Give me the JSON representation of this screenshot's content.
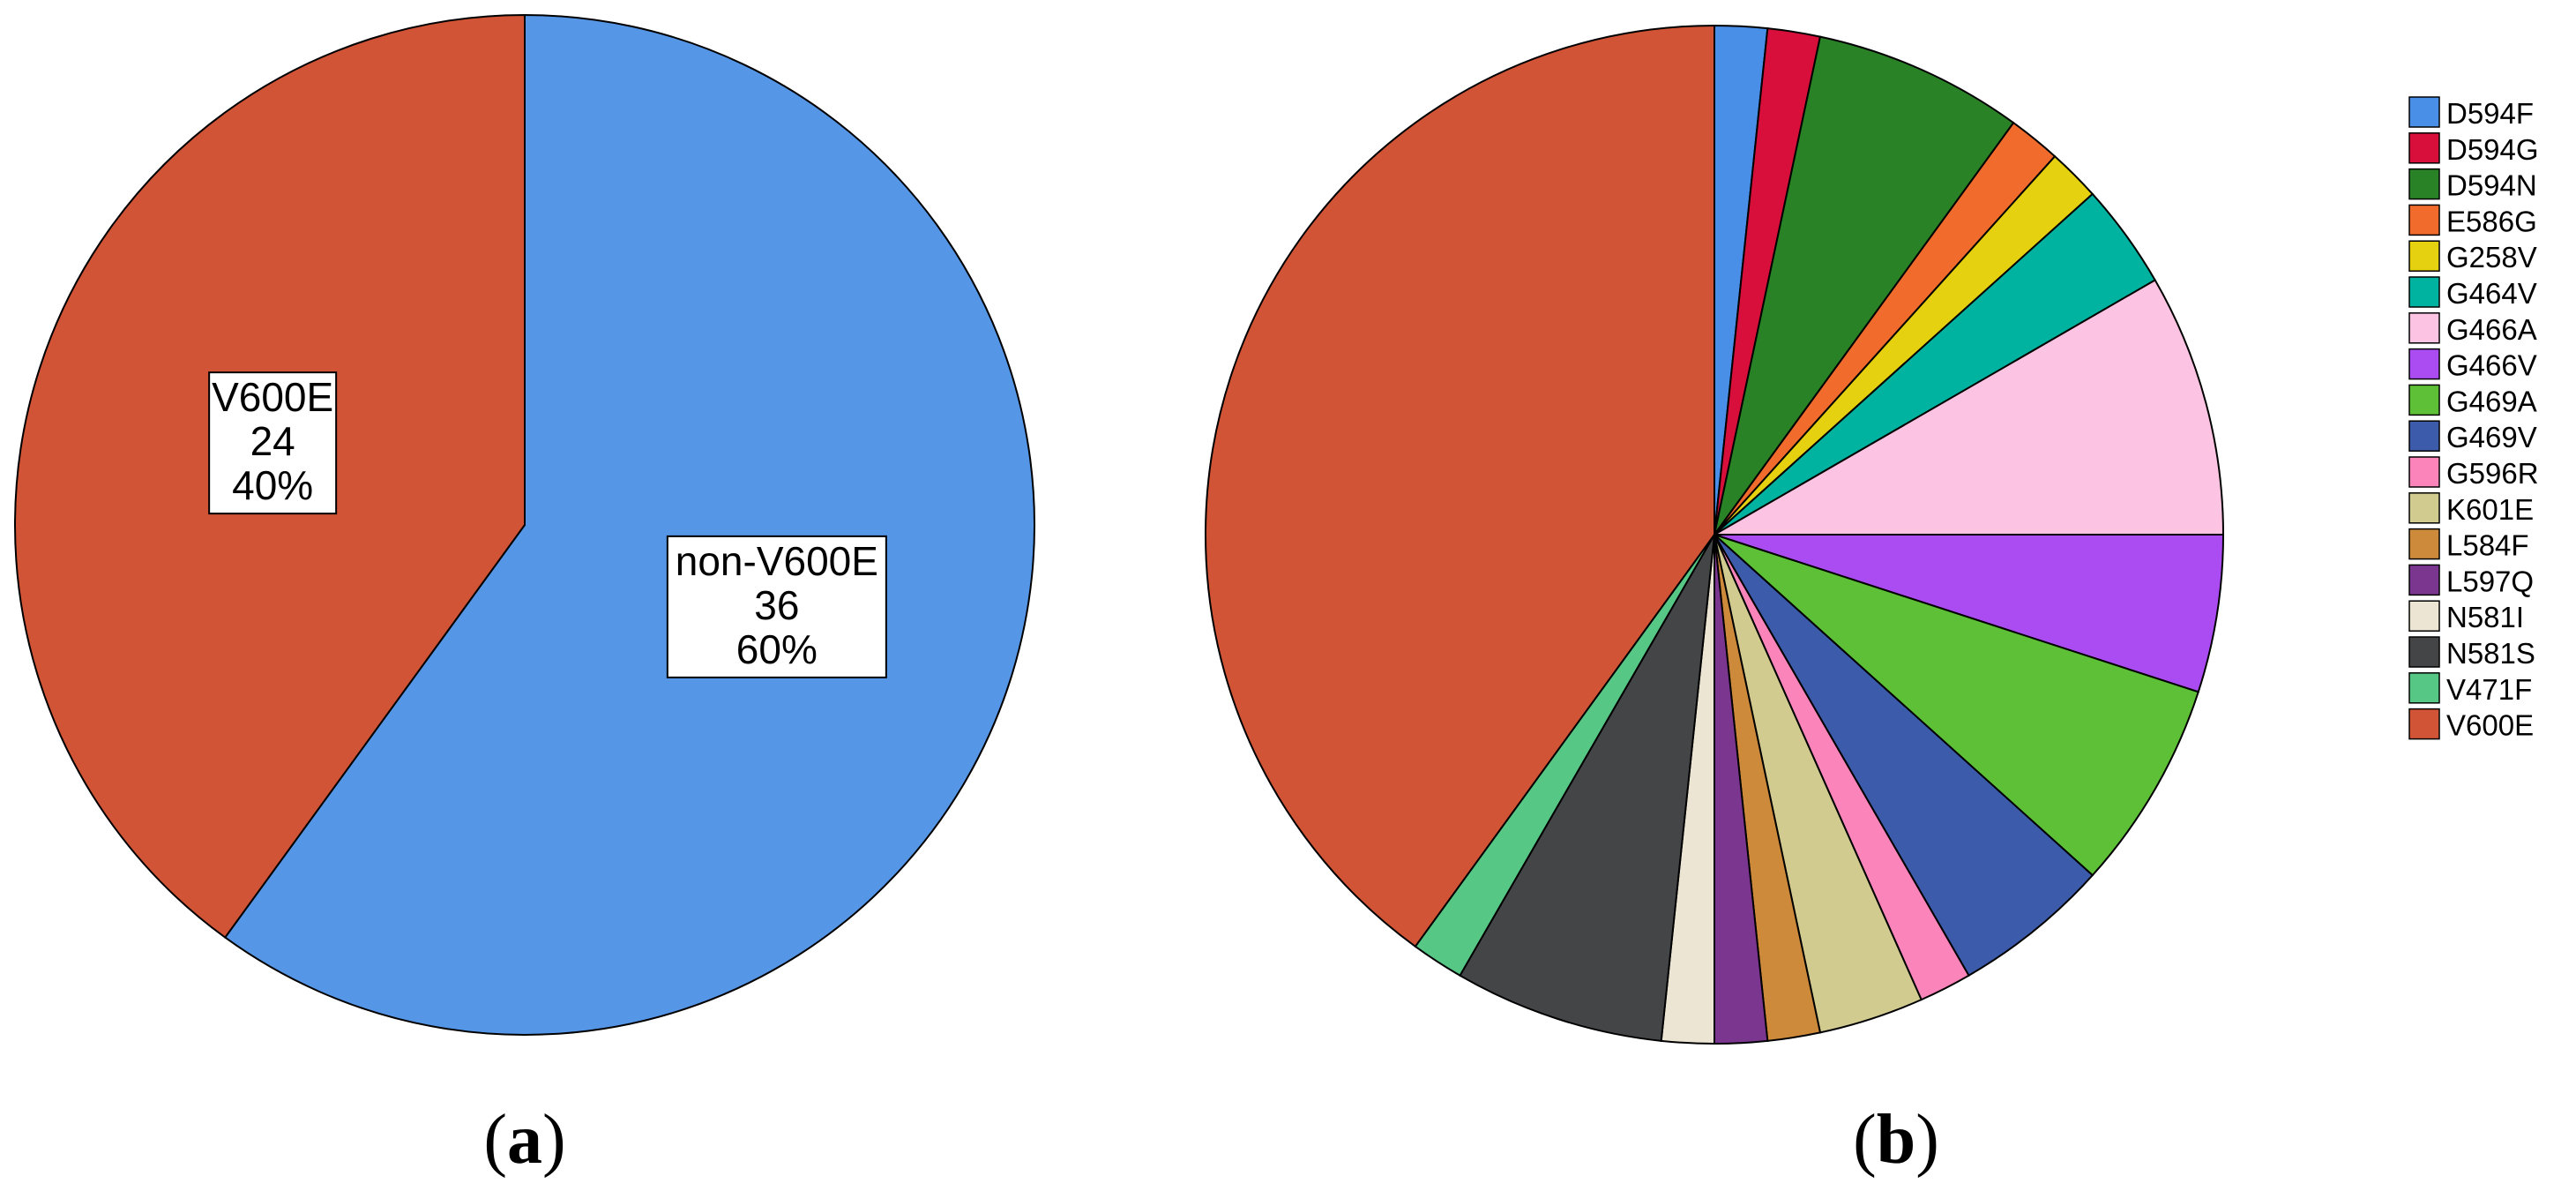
{
  "chart_data": [
    {
      "type": "pie",
      "panel_label": "(a)",
      "panel_letter": "a",
      "slices": [
        {
          "name": "non-V600E",
          "value": 36,
          "percent": "60%",
          "color": "#5596e6"
        },
        {
          "name": "V600E",
          "value": 24,
          "percent": "40%",
          "color": "#d05435"
        }
      ],
      "start_angle_deg": 0,
      "direction": "clockwise"
    },
    {
      "type": "pie",
      "panel_label": "(b)",
      "panel_letter": "b",
      "slices": [
        {
          "name": "D594F",
          "value": 1,
          "color": "#4a8fe7"
        },
        {
          "name": "D594G",
          "value": 1,
          "color": "#d80f3a"
        },
        {
          "name": "D594N",
          "value": 4,
          "color": "#2a8226"
        },
        {
          "name": "E586G",
          "value": 1,
          "color": "#f06b2c"
        },
        {
          "name": "G258V",
          "value": 1,
          "color": "#e5d10f"
        },
        {
          "name": "G464V",
          "value": 2,
          "color": "#00b3a1"
        },
        {
          "name": "G466A",
          "value": 5,
          "color": "#fcc3e2"
        },
        {
          "name": "G466V",
          "value": 3,
          "color": "#ab4bf2"
        },
        {
          "name": "G469A",
          "value": 4,
          "color": "#5dc036"
        },
        {
          "name": "G469V",
          "value": 3,
          "color": "#3c5bab"
        },
        {
          "name": "G596R",
          "value": 1,
          "color": "#fb84bb"
        },
        {
          "name": "K601E",
          "value": 2,
          "color": "#d2cb90"
        },
        {
          "name": "L584F",
          "value": 1,
          "color": "#cd8a3b"
        },
        {
          "name": "L597Q",
          "value": 1,
          "color": "#7b3690"
        },
        {
          "name": "N581I",
          "value": 1,
          "color": "#ede5d3"
        },
        {
          "name": "N581S",
          "value": 4,
          "color": "#444547"
        },
        {
          "name": "V471F",
          "value": 1,
          "color": "#57c786"
        },
        {
          "name": "V600E",
          "value": 24,
          "color": "#d05435"
        }
      ],
      "start_angle_deg": 0,
      "direction": "clockwise",
      "legend_position": "right"
    }
  ]
}
